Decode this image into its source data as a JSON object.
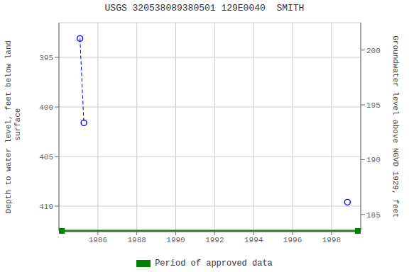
{
  "chart_data": {
    "type": "scatter",
    "title": "USGS 320538089380501 129E0040  SMITH",
    "x": [
      1985.08,
      1985.28,
      1998.82
    ],
    "series": [
      {
        "type": "line",
        "line_style": "dashed",
        "color": "#0000FF",
        "values": [
          393.1,
          401.6,
          null
        ]
      },
      {
        "type": "scatter",
        "marker": "circle",
        "color": "#0000FF",
        "values": [
          393.1,
          401.6,
          409.6
        ]
      }
    ],
    "xlim": [
      1984.0,
      1999.5
    ],
    "xticks": [
      1986,
      1988,
      1990,
      1992,
      1994,
      1996,
      1998
    ],
    "ylim": [
      412.5,
      391.5
    ],
    "yticks": [
      395,
      400,
      405,
      410
    ],
    "ylabel": "Depth to water level, feet below land\n surface",
    "y2lim": [
      183.5,
      202.5
    ],
    "y2ticks": [
      185,
      190,
      195,
      200
    ],
    "y2label": "Groundwater level above NGVD 1929, feet",
    "grid": true,
    "period": {
      "name": "Period of approved data",
      "color": "#008000",
      "x": [
        1984.15,
        1999.35
      ]
    }
  }
}
